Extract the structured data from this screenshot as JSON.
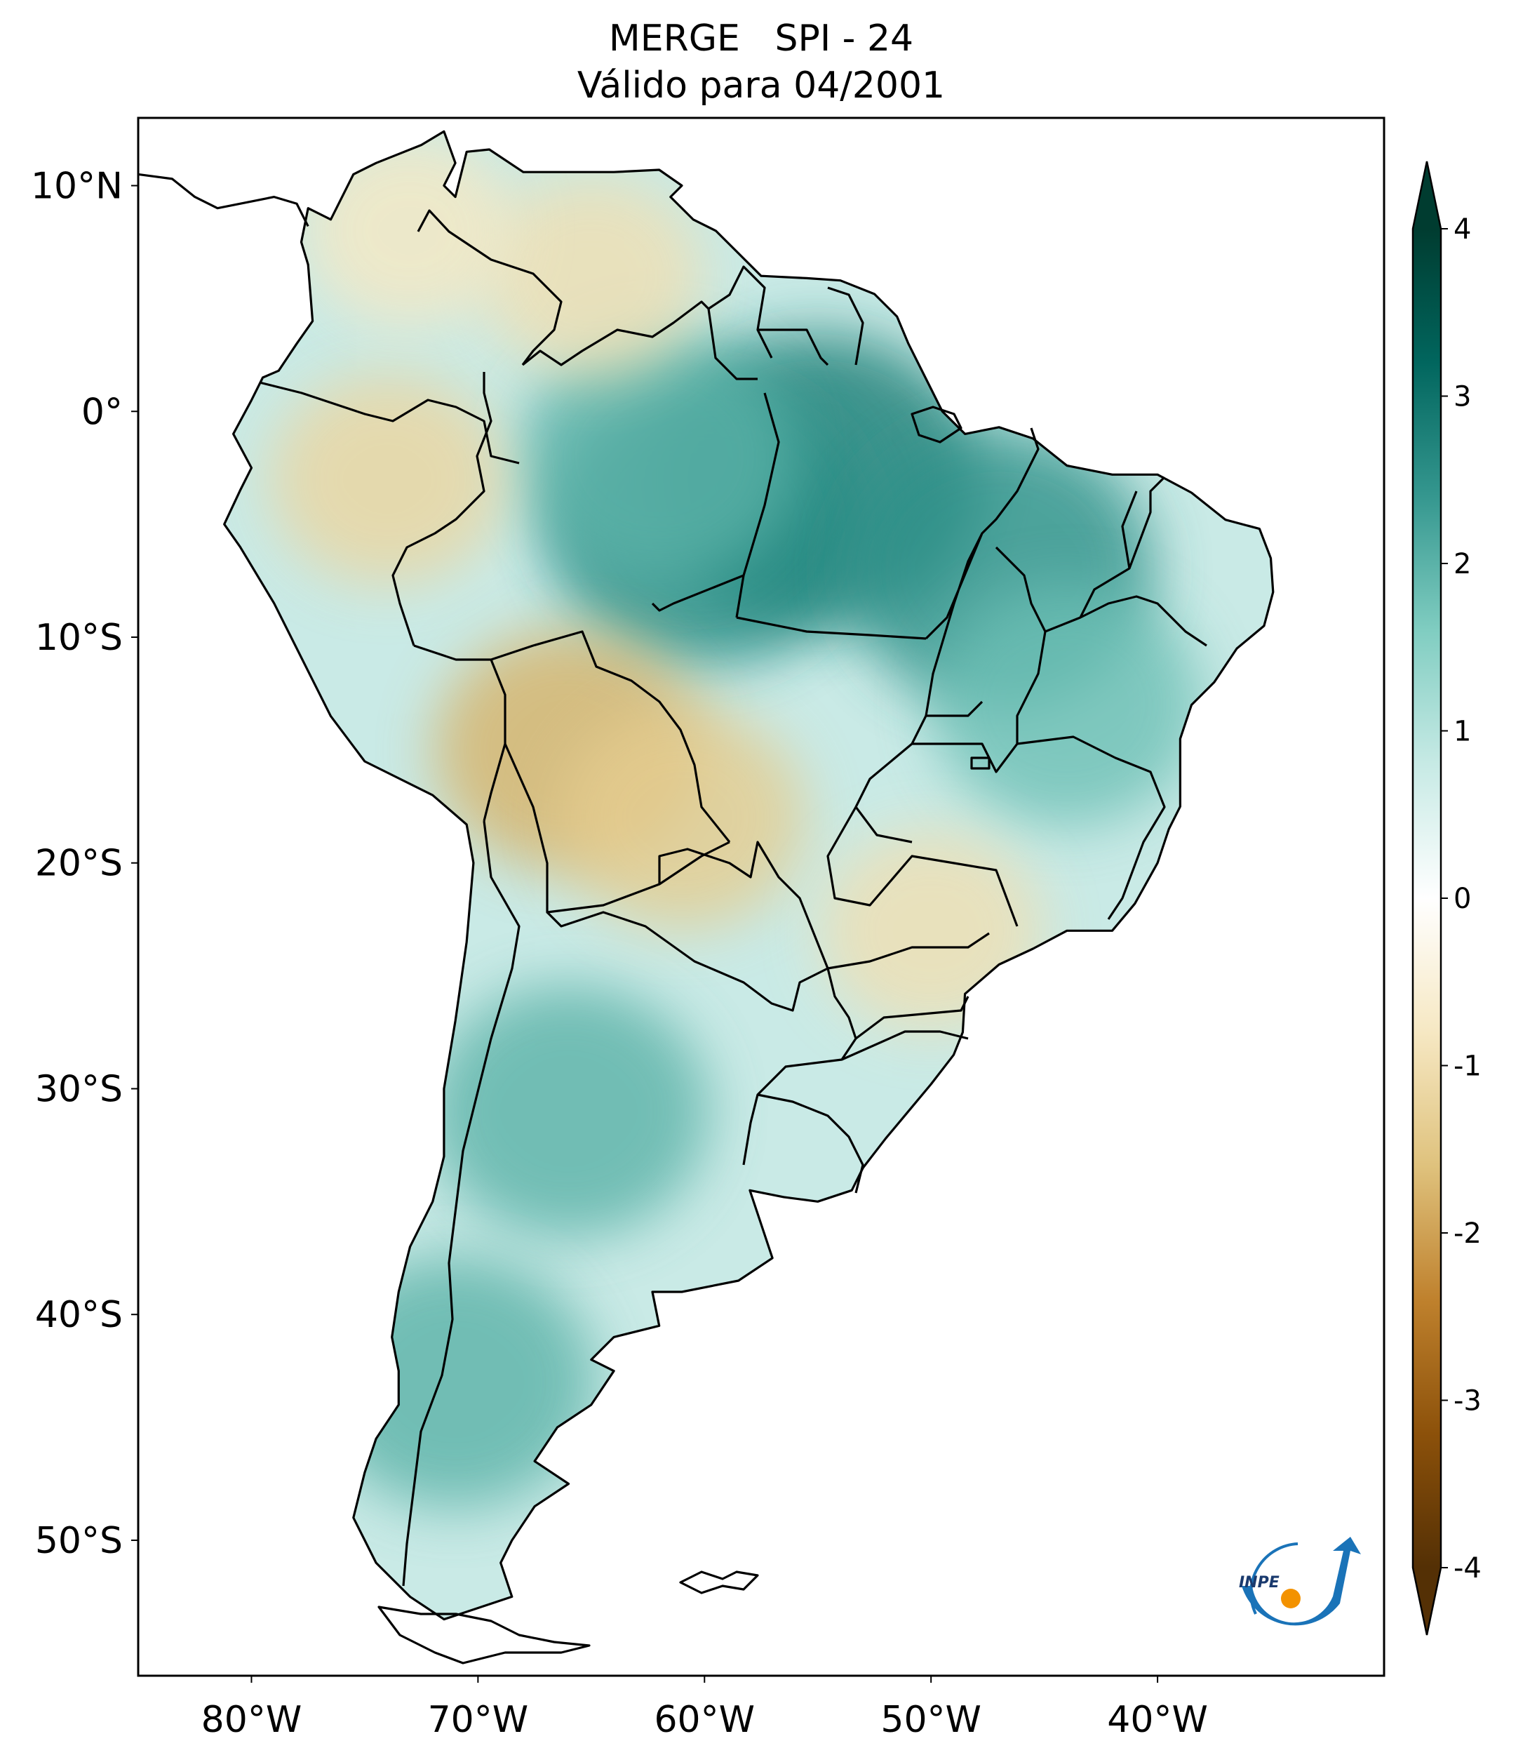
{
  "title": {
    "line1": "MERGE   SPI - 24",
    "line2": "Válido para 04/2001"
  },
  "map": {
    "lon_range": [
      -85,
      -30
    ],
    "lat_range": [
      -56,
      13
    ],
    "lon_ticks": [
      {
        "value": -80,
        "label": "80°W"
      },
      {
        "value": -70,
        "label": "70°W"
      },
      {
        "value": -60,
        "label": "60°W"
      },
      {
        "value": -50,
        "label": "50°W"
      },
      {
        "value": -40,
        "label": "40°W"
      }
    ],
    "lat_ticks": [
      {
        "value": 10,
        "label": "10°N"
      },
      {
        "value": 0,
        "label": "0°"
      },
      {
        "value": -10,
        "label": "10°S"
      },
      {
        "value": -20,
        "label": "20°S"
      },
      {
        "value": -30,
        "label": "30°S"
      },
      {
        "value": -40,
        "label": "40°S"
      },
      {
        "value": -50,
        "label": "50°S"
      }
    ],
    "anomaly_regions": [
      {
        "lon": -55,
        "lat": -3,
        "value": 2.8
      },
      {
        "lon": -60,
        "lat": -5,
        "value": 2.6
      },
      {
        "lon": -47,
        "lat": -7,
        "value": 2.5
      },
      {
        "lon": -62,
        "lat": -2,
        "value": 2.0
      },
      {
        "lon": -44,
        "lat": -13,
        "value": 1.8
      },
      {
        "lon": -66,
        "lat": -31,
        "value": 2.0
      },
      {
        "lon": -71,
        "lat": -43,
        "value": 2.0
      },
      {
        "lon": -74,
        "lat": -3,
        "value": -1.2
      },
      {
        "lon": -66,
        "lat": -15,
        "value": -1.8
      },
      {
        "lon": -61,
        "lat": -18,
        "value": -1.4
      },
      {
        "lon": -50,
        "lat": -23,
        "value": -1.0
      },
      {
        "lon": -65,
        "lat": 6,
        "value": -1.0
      },
      {
        "lon": -73,
        "lat": 8,
        "value": -0.8
      }
    ]
  },
  "colorbar": {
    "colormap": "BrBG",
    "min": -4,
    "max": 4,
    "ticks": [
      {
        "value": 4,
        "label": "4"
      },
      {
        "value": 3,
        "label": "3"
      },
      {
        "value": 2,
        "label": "2"
      },
      {
        "value": 1,
        "label": "1"
      },
      {
        "value": 0,
        "label": "0"
      },
      {
        "value": -1,
        "label": "-1"
      },
      {
        "value": -2,
        "label": "-2"
      },
      {
        "value": -3,
        "label": "-3"
      },
      {
        "value": -4,
        "label": "-4"
      }
    ],
    "colors": [
      "#543005",
      "#8c510a",
      "#bf812d",
      "#dfc27d",
      "#f6e8c3",
      "#ffffff",
      "#c7eae5",
      "#80cdc1",
      "#35978f",
      "#01665e",
      "#003c30"
    ]
  },
  "logo": {
    "text": "INPE",
    "colors": {
      "arc": "#1a73b8",
      "sun": "#f39200"
    }
  }
}
